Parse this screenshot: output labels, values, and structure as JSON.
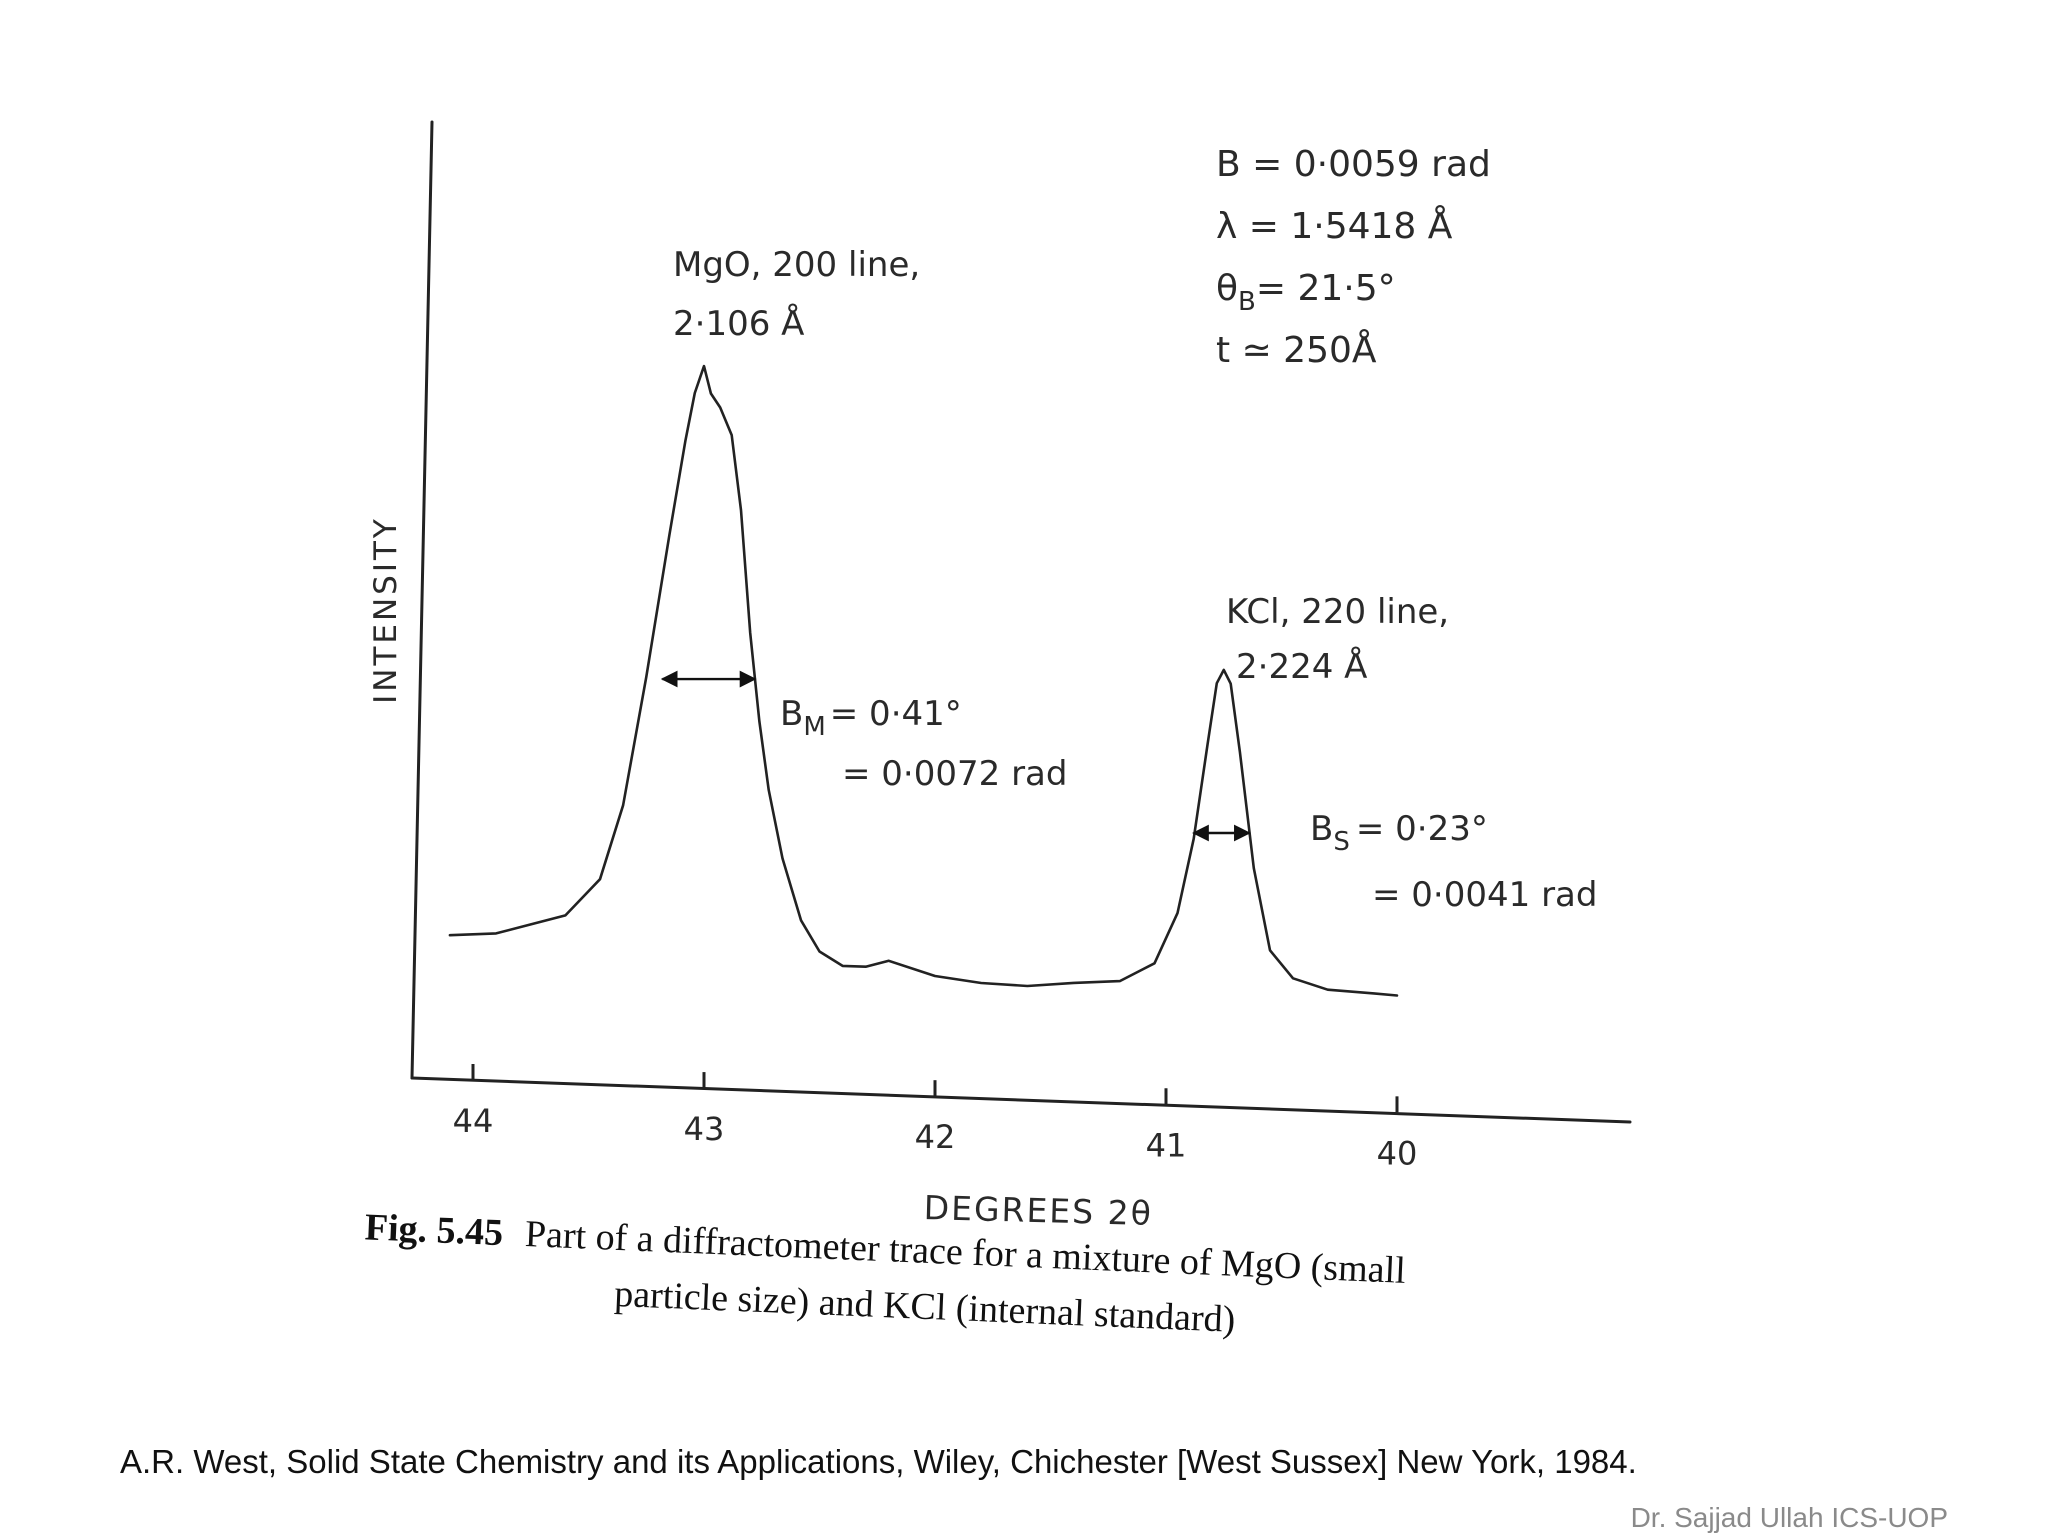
{
  "chart_data": {
    "type": "line",
    "xlabel": "DEGREES 2θ",
    "ylabel": "INTENSITY",
    "x_ticks": [
      "44",
      "43",
      "42",
      "41",
      "40"
    ],
    "x_reversed": true,
    "xlim": [
      44.2,
      39.0
    ],
    "ylim": [
      0,
      100
    ],
    "series": [
      {
        "x": [
          44.1,
          43.9,
          43.75,
          43.6,
          43.45,
          43.35,
          43.25,
          43.15,
          43.08,
          43.04,
          43.0,
          42.97,
          42.93,
          42.88,
          42.84,
          42.8,
          42.76,
          42.72,
          42.66,
          42.58,
          42.5,
          42.4,
          42.3,
          42.2,
          42.0,
          41.8,
          41.6,
          41.4,
          41.2,
          41.05,
          40.95,
          40.88,
          40.82,
          40.78,
          40.75,
          40.72,
          40.68,
          40.62,
          40.55,
          40.45,
          40.3,
          40.1,
          40.0
        ],
        "y": [
          10,
          10.5,
          12,
          13.5,
          19,
          30,
          49,
          70,
          84,
          91,
          95,
          91,
          89,
          85,
          74,
          56,
          43,
          33,
          23,
          14,
          9.5,
          7.5,
          7.5,
          8.5,
          6.5,
          5.7,
          5.5,
          6.2,
          6.7,
          9.5,
          17,
          28,
          42,
          51,
          53,
          51,
          41,
          24,
          12,
          8,
          6.5,
          6.2,
          6
        ]
      }
    ],
    "annotations": {
      "mgo_peak": [
        "MgO, 200 line,",
        "2·106 Å"
      ],
      "kcl_peak": [
        "KCl, 220 line,",
        "2·224 Å"
      ],
      "bm_line1": "B",
      "bm_sub": "M",
      "bm_val1": "= 0·41°",
      "bm_line2": "= 0·0072 rad",
      "bs_line1": "B",
      "bs_sub": "S",
      "bs_val1": "= 0·23°",
      "bs_line2": "= 0·0041 rad",
      "params": {
        "b": "B = 0·0059 rad",
        "lambda": "λ = 1·5418 Å",
        "theta_sym": "θ",
        "theta_sub": "B",
        "theta_val": "= 21·5°",
        "t": "t ≃ 250Å"
      }
    },
    "fwhm_marks": [
      {
        "name": "mgo",
        "x1": 43.18,
        "x2": 42.78,
        "y": 49
      },
      {
        "name": "kcl",
        "x1": 40.88,
        "x2": 40.64,
        "y": 29
      }
    ],
    "caption": {
      "label": "Fig. 5.45",
      "line1": "Part of a diffractometer trace for a mixture of MgO (small",
      "line2": "particle size) and KCl (internal standard)"
    }
  },
  "citation": "A.R. West, Solid State Chemistry and its Applications, Wiley, Chichester [West Sussex] New York, 1984.",
  "footer": "Dr. Sajjad Ullah ICS-UOP"
}
